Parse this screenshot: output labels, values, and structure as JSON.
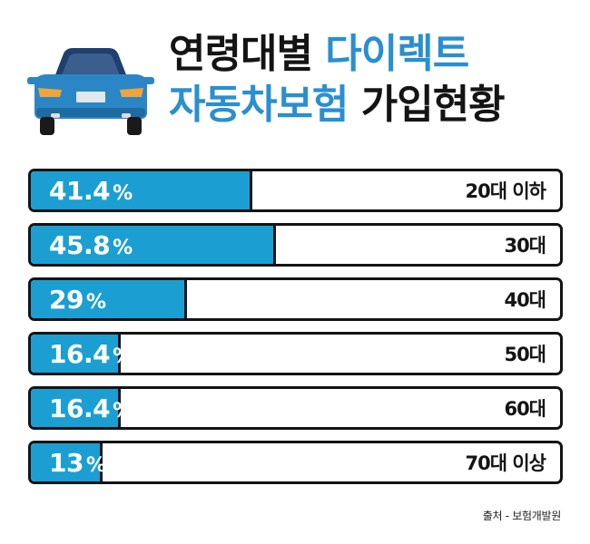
{
  "title": {
    "line1_dark": "연령대별",
    "line1_blue": "다이렉트",
    "line2_blue": "자동차보험",
    "line2_dark": "가입현황"
  },
  "source": "출처 - 보험개발원",
  "colors": {
    "bar": "#1b9fd3",
    "title_blue": "#2a8fd0",
    "outline": "#141414",
    "car_body": "#2b86c5"
  },
  "header_icon": "car-rear-icon",
  "chart_data": {
    "type": "bar",
    "orientation": "horizontal",
    "categories": [
      "20대 이하",
      "30대",
      "40대",
      "50대",
      "60대",
      "70대 이상"
    ],
    "values": [
      41.4,
      45.8,
      29,
      16.4,
      16.4,
      13
    ],
    "value_labels": [
      "41.4",
      "45.8",
      "29",
      "16.4",
      "16.4",
      "13"
    ],
    "unit": "%",
    "xlim": [
      0,
      100
    ]
  }
}
